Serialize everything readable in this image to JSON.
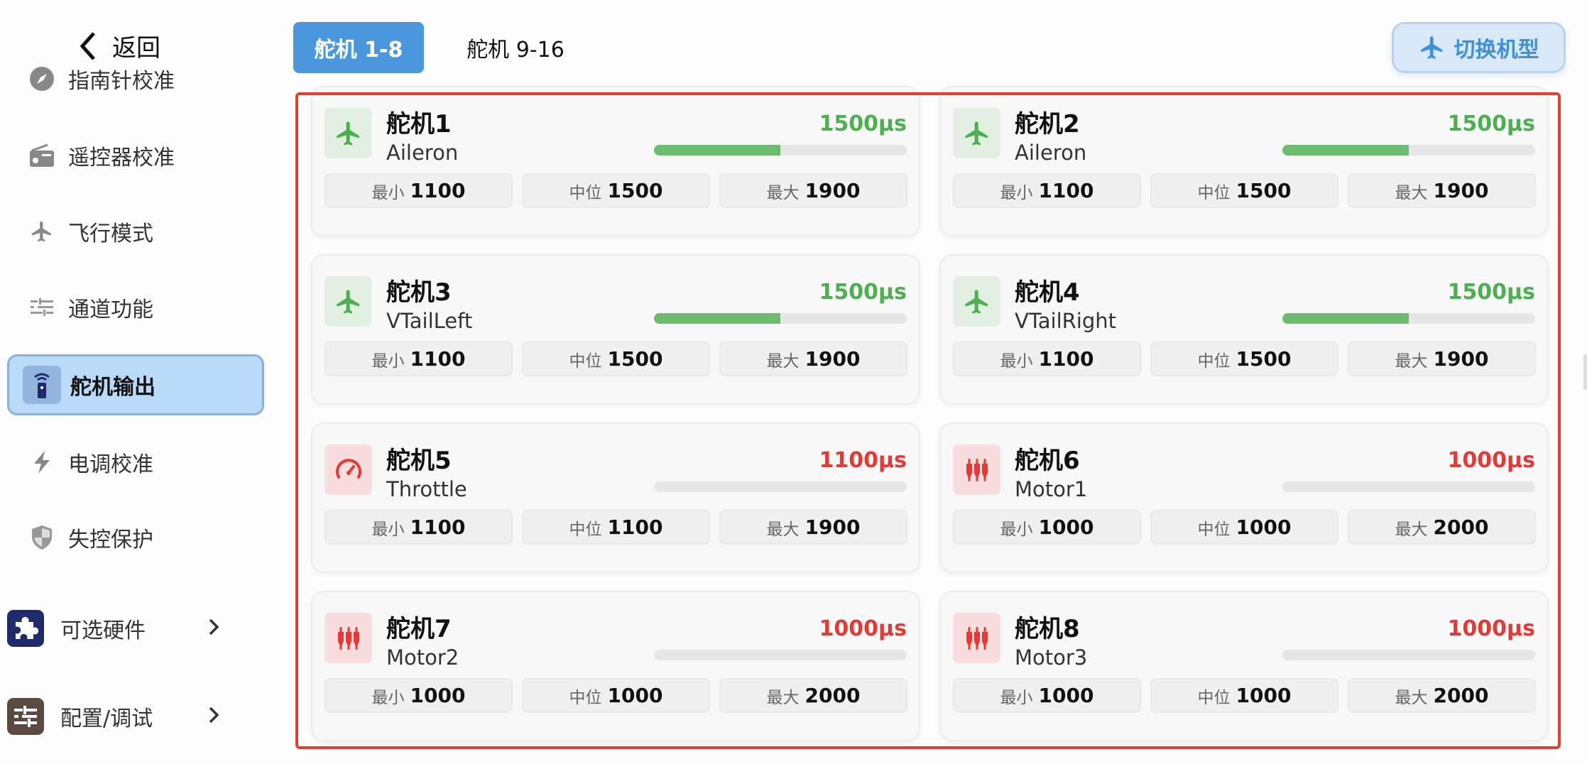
{
  "sidebar": {
    "back_label": "返回",
    "items": [
      {
        "label": "指南针校准",
        "icon": "compass-icon"
      },
      {
        "label": "遥控器校准",
        "icon": "radio-icon"
      },
      {
        "label": "飞行模式",
        "icon": "airplane-icon"
      },
      {
        "label": "通道功能",
        "icon": "sliders-icon"
      },
      {
        "label": "舵机输出",
        "icon": "remote-icon",
        "active": true
      },
      {
        "label": "电调校准",
        "icon": "bolt-icon"
      },
      {
        "label": "失控保护",
        "icon": "shield-icon"
      }
    ],
    "groups": [
      {
        "label": "可选硬件",
        "icon": "puzzle-icon",
        "color": "#1f2a6b"
      },
      {
        "label": "配置/调试",
        "icon": "tune-icon",
        "color": "#5a4a40"
      }
    ]
  },
  "tabs": [
    {
      "label": "舵机 1-8",
      "active": true
    },
    {
      "label": "舵机 9-16",
      "active": false
    }
  ],
  "switch_button": {
    "label": "切换机型",
    "icon": "airplane-icon"
  },
  "labels": {
    "min": "最小",
    "mid": "中位",
    "max": "最大"
  },
  "colors": {
    "green": "#4caf50",
    "red": "#e53935",
    "green_bg": "#e2f0e2",
    "red_bg": "#f9dddd",
    "bar_fill": "#6cbb6e",
    "highlight": "#e53e2a"
  },
  "servos": [
    {
      "title": "舵机1",
      "function": "Aileron",
      "value": "1500μs",
      "pwm": 1500,
      "min": "1100",
      "mid": "1500",
      "max": "1900",
      "status": "green",
      "icon": "airplane-icon"
    },
    {
      "title": "舵机2",
      "function": "Aileron",
      "value": "1500μs",
      "pwm": 1500,
      "min": "1100",
      "mid": "1500",
      "max": "1900",
      "status": "green",
      "icon": "airplane-icon"
    },
    {
      "title": "舵机3",
      "function": "VTailLeft",
      "value": "1500μs",
      "pwm": 1500,
      "min": "1100",
      "mid": "1500",
      "max": "1900",
      "status": "green",
      "icon": "airplane-icon"
    },
    {
      "title": "舵机4",
      "function": "VTailRight",
      "value": "1500μs",
      "pwm": 1500,
      "min": "1100",
      "mid": "1500",
      "max": "1900",
      "status": "green",
      "icon": "airplane-icon"
    },
    {
      "title": "舵机5",
      "function": "Throttle",
      "value": "1100μs",
      "pwm": 1100,
      "min": "1100",
      "mid": "1100",
      "max": "1900",
      "status": "red",
      "icon": "gauge-icon"
    },
    {
      "title": "舵机6",
      "function": "Motor1",
      "value": "1000μs",
      "pwm": 1000,
      "min": "1000",
      "mid": "1000",
      "max": "2000",
      "status": "red",
      "icon": "motor-icon"
    },
    {
      "title": "舵机7",
      "function": "Motor2",
      "value": "1000μs",
      "pwm": 1000,
      "min": "1000",
      "mid": "1000",
      "max": "2000",
      "status": "red",
      "icon": "motor-icon"
    },
    {
      "title": "舵机8",
      "function": "Motor3",
      "value": "1000μs",
      "pwm": 1000,
      "min": "1000",
      "mid": "1000",
      "max": "2000",
      "status": "red",
      "icon": "motor-icon"
    }
  ]
}
